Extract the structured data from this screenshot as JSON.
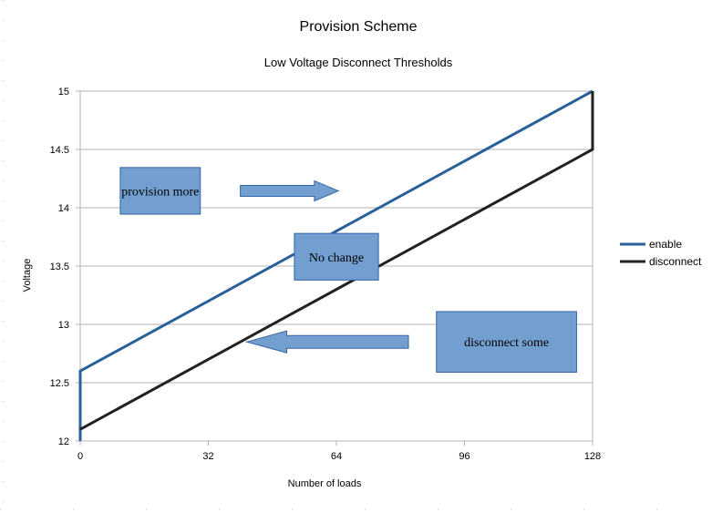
{
  "chart_data": {
    "type": "line",
    "title": "Provision Scheme",
    "subtitle": "Low Voltage Disconnect Thresholds",
    "xlabel": "Number of loads",
    "ylabel": "Voltage",
    "xlim": [
      0,
      128
    ],
    "ylim": [
      12,
      15
    ],
    "x_ticks": [
      "0",
      "32",
      "64",
      "96",
      "128"
    ],
    "y_ticks": [
      "12",
      "12.5",
      "13",
      "13.5",
      "14",
      "14.5",
      "15"
    ],
    "grid": "horizontal",
    "legend_position": "right",
    "series": [
      {
        "name": "enable",
        "color": "#2a6099",
        "points": [
          [
            0,
            12
          ],
          [
            0,
            12.6
          ],
          [
            128,
            15
          ]
        ]
      },
      {
        "name": "disconnect",
        "color": "#222222",
        "points": [
          [
            0,
            12.1
          ],
          [
            128,
            14.5
          ],
          [
            128,
            15
          ]
        ]
      }
    ],
    "annotations": [
      {
        "text": "provision more",
        "arrow": "right",
        "box_color": "#729fcf"
      },
      {
        "text": "No change",
        "arrow": "none",
        "box_color": "#729fcf"
      },
      {
        "text": "disconnect some",
        "arrow": "left",
        "box_color": "#729fcf"
      }
    ]
  }
}
